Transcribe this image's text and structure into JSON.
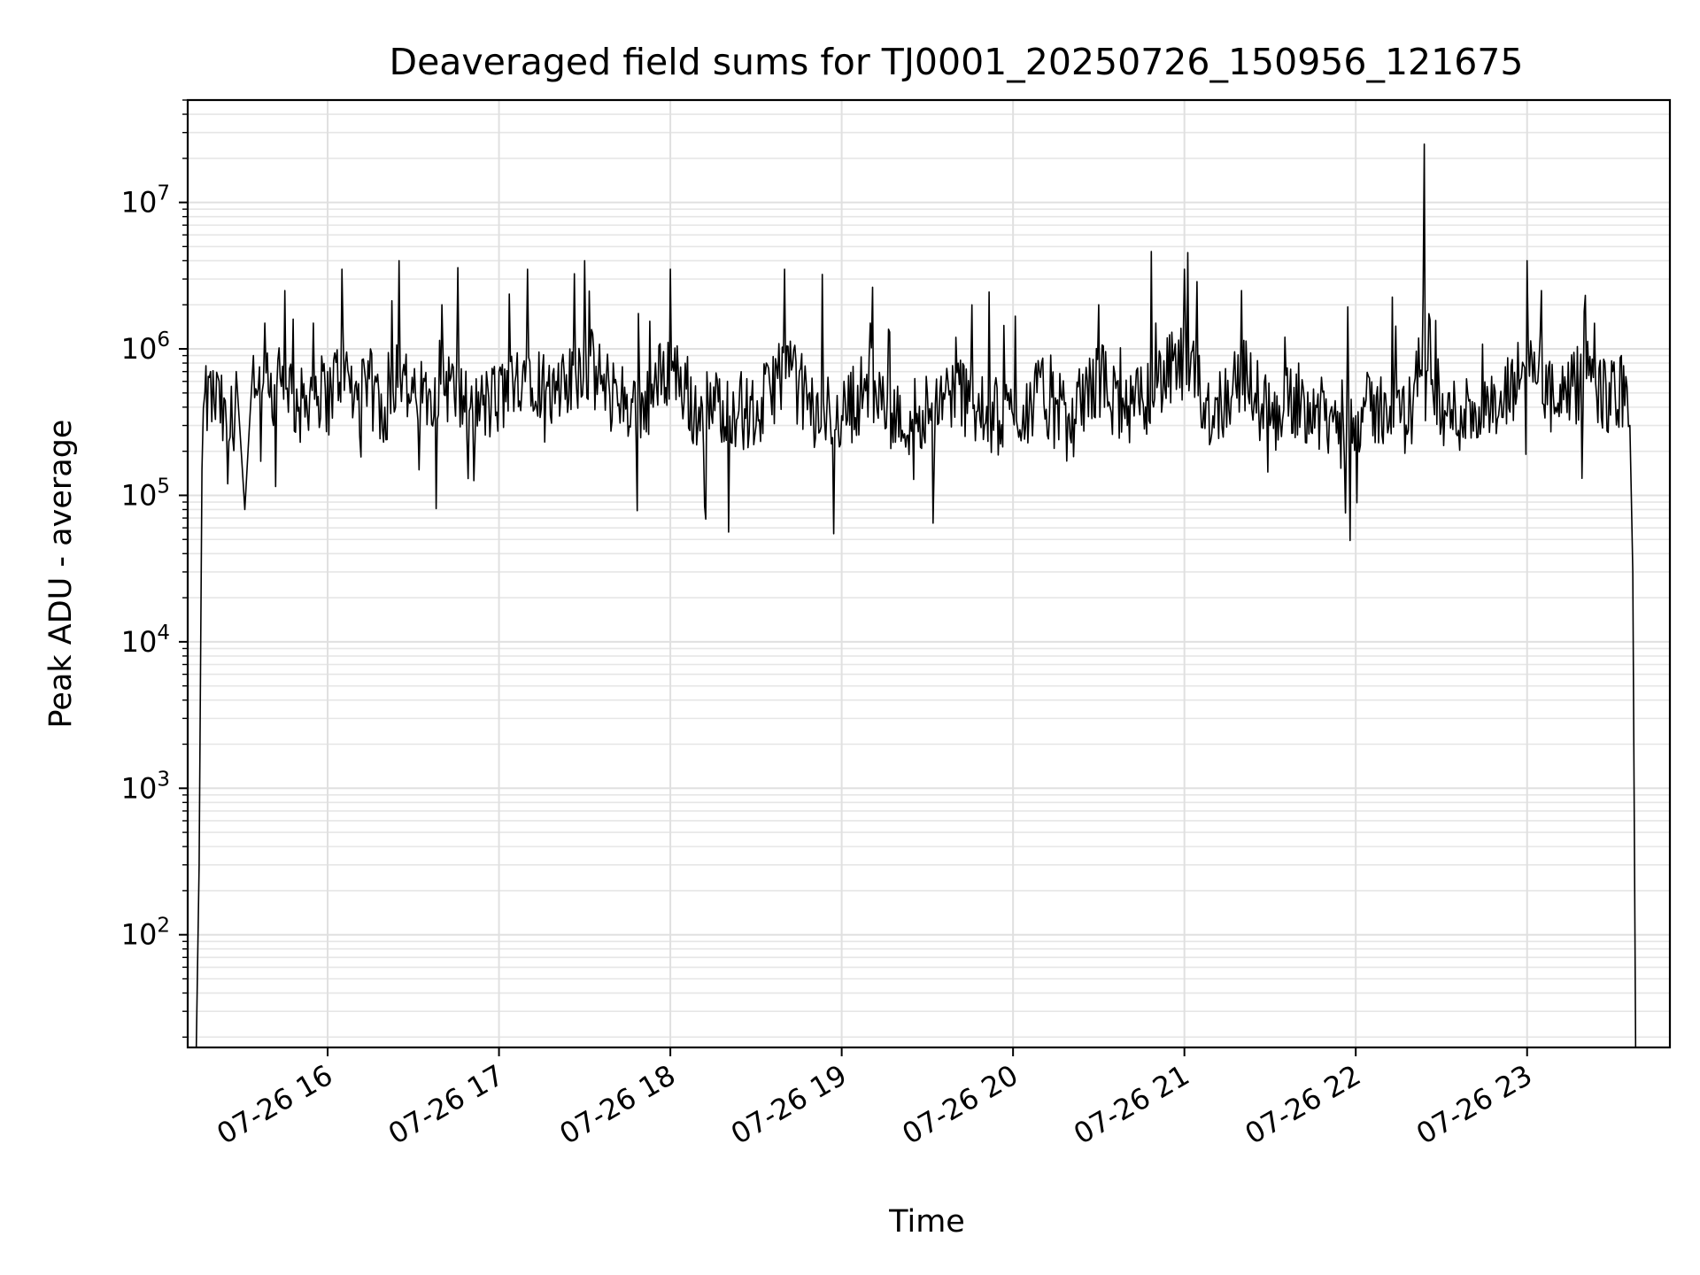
{
  "chart_data": {
    "type": "line",
    "title": "Deaveraged field sums for TJ0001_20250726_150956_121675",
    "xlabel": "Time",
    "ylabel": "Peak ADU - average",
    "yscale": "log",
    "ylim": [
      17,
      50000000
    ],
    "xlim": [
      "2025-07-26 15:11",
      "2025-07-26 23:50"
    ],
    "grid": true,
    "x_ticks": [
      {
        "label": "07-26 16",
        "value": "2025-07-26 16:00"
      },
      {
        "label": "07-26 17",
        "value": "2025-07-26 17:00"
      },
      {
        "label": "07-26 18",
        "value": "2025-07-26 18:00"
      },
      {
        "label": "07-26 19",
        "value": "2025-07-26 19:00"
      },
      {
        "label": "07-26 20",
        "value": "2025-07-26 20:00"
      },
      {
        "label": "07-26 21",
        "value": "2025-07-26 21:00"
      },
      {
        "label": "07-26 22",
        "value": "2025-07-26 22:00"
      },
      {
        "label": "07-26 23",
        "value": "2025-07-26 23:00"
      }
    ],
    "y_ticks": [
      {
        "base": "10",
        "exp": "2",
        "value": 100
      },
      {
        "base": "10",
        "exp": "3",
        "value": 1000
      },
      {
        "base": "10",
        "exp": "4",
        "value": 10000
      },
      {
        "base": "10",
        "exp": "5",
        "value": 100000
      },
      {
        "base": "10",
        "exp": "6",
        "value": 1000000
      },
      {
        "base": "10",
        "exp": "7",
        "value": 10000000
      }
    ],
    "line_color": "#000000",
    "series": [
      {
        "x": [
          "2025-07-26 15:14",
          "2025-07-26 15:15",
          "2025-07-26 15:16",
          "2025-07-26 15:17",
          "2025-07-26 15:19",
          "2025-07-26 15:22",
          "2025-07-26 15:25",
          "2025-07-26 15:28",
          "2025-07-26 15:31",
          "2025-07-26 15:34",
          "2025-07-26 15:37",
          "2025-07-26 15:38",
          "2025-07-26 15:41",
          "2025-07-26 15:45",
          "2025-07-26 15:50",
          "2025-07-26 15:55",
          "2025-07-26 16:00",
          "2025-07-26 16:05",
          "2025-07-26 16:10",
          "2025-07-26 16:15",
          "2025-07-26 16:20",
          "2025-07-26 16:25",
          "2025-07-26 16:30",
          "2025-07-26 16:40",
          "2025-07-26 16:50",
          "2025-07-26 17:00",
          "2025-07-26 17:10",
          "2025-07-26 17:20",
          "2025-07-26 17:30",
          "2025-07-26 17:40",
          "2025-07-26 17:50",
          "2025-07-26 18:00",
          "2025-07-26 18:10",
          "2025-07-26 18:20",
          "2025-07-26 18:30",
          "2025-07-26 18:40",
          "2025-07-26 18:50",
          "2025-07-26 19:00",
          "2025-07-26 19:10",
          "2025-07-26 19:20",
          "2025-07-26 19:30",
          "2025-07-26 19:40",
          "2025-07-26 19:50",
          "2025-07-26 20:00",
          "2025-07-26 20:10",
          "2025-07-26 20:20",
          "2025-07-26 20:30",
          "2025-07-26 20:40",
          "2025-07-26 20:50",
          "2025-07-26 21:00",
          "2025-07-26 21:10",
          "2025-07-26 21:20",
          "2025-07-26 21:30",
          "2025-07-26 21:40",
          "2025-07-26 21:50",
          "2025-07-26 22:00",
          "2025-07-26 22:10",
          "2025-07-26 22:20",
          "2025-07-26 22:24",
          "2025-07-26 22:30",
          "2025-07-26 22:40",
          "2025-07-26 22:50",
          "2025-07-26 23:00",
          "2025-07-26 23:05",
          "2025-07-26 23:10",
          "2025-07-26 23:20",
          "2025-07-26 23:30",
          "2025-07-26 23:33",
          "2025-07-26 23:35",
          "2025-07-26 23:36",
          "2025-07-26 23:37",
          "2025-07-26 23:38"
        ],
        "y": [
          17,
          300,
          150000,
          500000,
          700000,
          600000,
          120000,
          700000,
          80000,
          900000,
          500000,
          1500000,
          300000,
          2500000,
          400000,
          1500000,
          700000,
          3500000,
          600000,
          1000000,
          400000,
          4000000,
          500000,
          2000000,
          400000,
          700000,
          3500000,
          600000,
          4000000,
          800000,
          500000,
          3500000,
          400000,
          600000,
          300000,
          3500000,
          400000,
          350000,
          1500000,
          250000,
          500000,
          1200000,
          300000,
          350000,
          800000,
          250000,
          2000000,
          300000,
          1500000,
          3500000,
          350000,
          2500000,
          300000,
          800000,
          250000,
          350000,
          500000,
          400000,
          25000000,
          300000,
          450000,
          350000,
          4000000,
          2500000,
          400000,
          1800000,
          700000,
          900000,
          550000,
          300000,
          30000,
          17
        ]
      }
    ]
  }
}
